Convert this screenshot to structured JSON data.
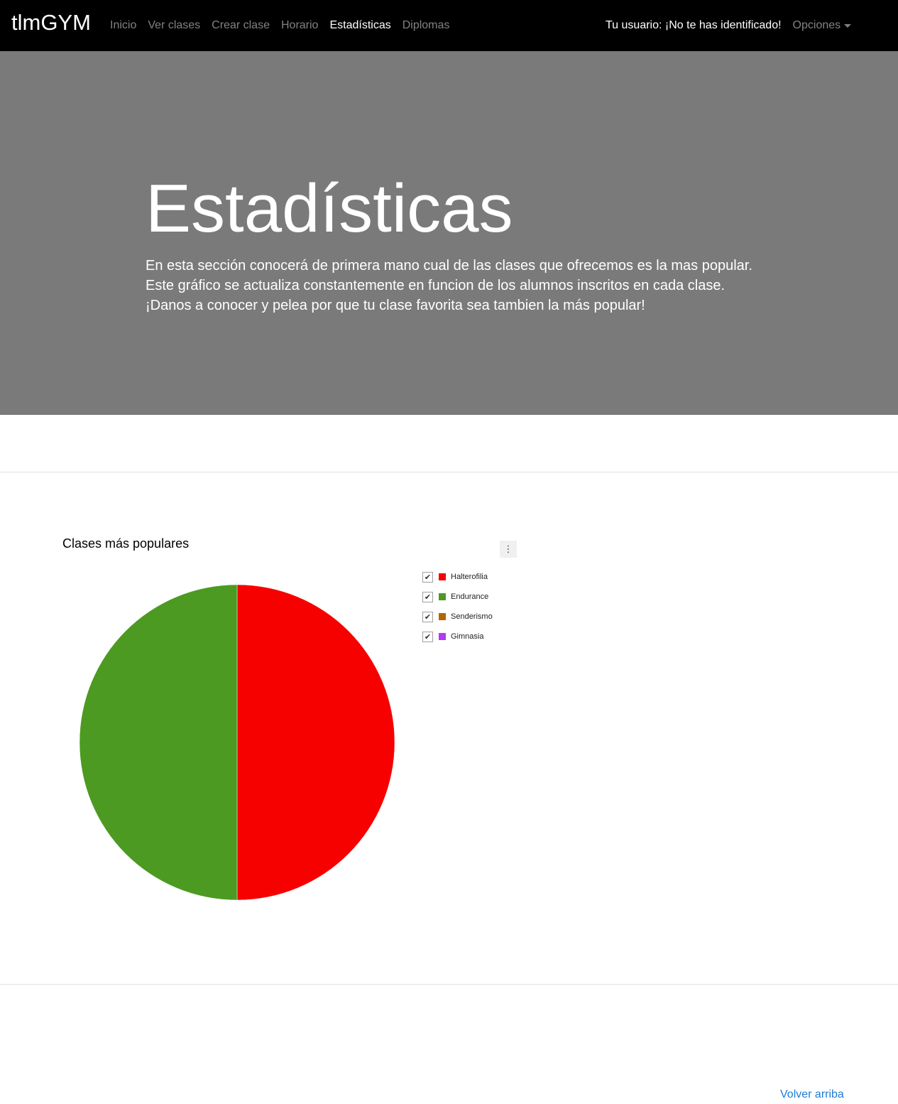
{
  "navbar": {
    "brand": "tlmGYM",
    "links": [
      {
        "label": "Inicio",
        "active": false
      },
      {
        "label": "Ver clases",
        "active": false
      },
      {
        "label": "Crear clase",
        "active": false
      },
      {
        "label": "Horario",
        "active": false
      },
      {
        "label": "Estadísticas",
        "active": true
      },
      {
        "label": "Diplomas",
        "active": false
      }
    ],
    "user_text": "Tu usuario: ¡No te has identificado!",
    "options_label": "Opciones"
  },
  "hero": {
    "title": "Estadísticas",
    "lines": [
      "En esta sección conocerá de primera mano cual de las clases que ofrecemos es la mas popular.",
      "Este gráfico se actualiza constantemente en funcion de los alumnos inscritos en cada clase.",
      "¡Danos a conocer y pelea por que tu clase favorita sea tambien la más popular!"
    ],
    "background": "#7a7a7a"
  },
  "chart_menu_icon": "vertical-dots-icon",
  "chart_data": {
    "type": "pie",
    "title": "Clases más populares",
    "legend_position": "right",
    "categories": [
      "Halterofilia",
      "Endurance",
      "Senderismo",
      "Gimnasia"
    ],
    "values": [
      1,
      1,
      0,
      0
    ],
    "colors": [
      "#f70000",
      "#4c9a21",
      "#b56500",
      "#b23af0"
    ]
  },
  "footer": {
    "back_to_top": "Volver arriba"
  },
  "colors": {
    "navbar_bg": "#000000",
    "link_accent": "#1d7cd6"
  }
}
